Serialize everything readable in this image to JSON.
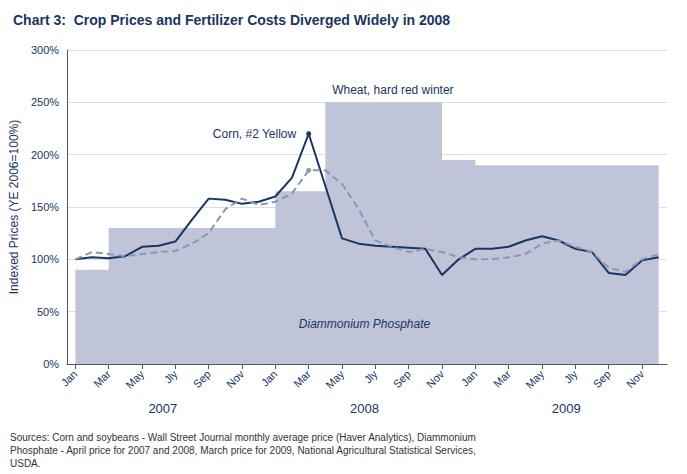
{
  "chart_data": {
    "type": "line",
    "title": "Chart 3:  Crop Prices and Fertilizer Costs Diverged Widely in 2008",
    "ylabel": "Indexed Prices (YE 2006=100%)",
    "source": "Sources: Corn and soybeans - Wall Street Journal monthly average price (Haver Analytics), Diammonium\nPhosphate - April price for 2007 and 2008, March price for 2009, National Agricultural Statistical Services,\nUSDA.",
    "categories": [
      "Jan",
      null,
      "Mar",
      null,
      "May",
      null,
      "Jly",
      null,
      "Sep",
      null,
      "Nov",
      null,
      "Jan",
      null,
      "Mar",
      null,
      "May",
      null,
      "Jly",
      null,
      "Sep",
      null,
      "Nov",
      null,
      "Jan",
      null,
      "Mar",
      null,
      "May",
      null,
      "Jly",
      null,
      "Sep",
      null,
      "Nov",
      null
    ],
    "year_labels": [
      "2007",
      "2008",
      "2009"
    ],
    "series": [
      {
        "name": "Diammonium Phosphate",
        "type": "step",
        "color": "#c0c4d8",
        "values": [
          90,
          90,
          130,
          130,
          130,
          130,
          130,
          130,
          130,
          130,
          130,
          130,
          165,
          165,
          165,
          250,
          250,
          250,
          250,
          250,
          250,
          250,
          195,
          195,
          190,
          190,
          190,
          190,
          190,
          190,
          190,
          190,
          190,
          190,
          190,
          190
        ]
      },
      {
        "name": "Corn, #2 Yellow",
        "type": "line",
        "color": "#1a3464",
        "line_style": "solid",
        "values": [
          100,
          102,
          101,
          103,
          112,
          113,
          117,
          138,
          158,
          157,
          153,
          155,
          160,
          178,
          220,
          170,
          120,
          115,
          113,
          112,
          111,
          110,
          85,
          100,
          110,
          110,
          112,
          118,
          122,
          118,
          110,
          107,
          87,
          85,
          99,
          102
        ]
      },
      {
        "name": "Wheat, hard red winter",
        "type": "line",
        "color": "#8898b8",
        "line_style": "dashed",
        "values": [
          100,
          107,
          105,
          103,
          105,
          107,
          108,
          115,
          125,
          148,
          158,
          152,
          155,
          163,
          185,
          185,
          172,
          148,
          118,
          112,
          107,
          110,
          107,
          102,
          100,
          100,
          102,
          105,
          115,
          118,
          112,
          107,
          92,
          88,
          100,
          105
        ]
      }
    ],
    "ylim": [
      0,
      300
    ],
    "yticks": [
      {
        "value": 0,
        "label": "0%"
      },
      {
        "value": 50,
        "label": "50%"
      },
      {
        "value": 100,
        "label": "100%"
      },
      {
        "value": 150,
        "label": "150%"
      },
      {
        "value": 200,
        "label": "200%"
      },
      {
        "value": 250,
        "label": "250%"
      },
      {
        "value": 300,
        "label": "300%"
      }
    ],
    "grid": true
  }
}
